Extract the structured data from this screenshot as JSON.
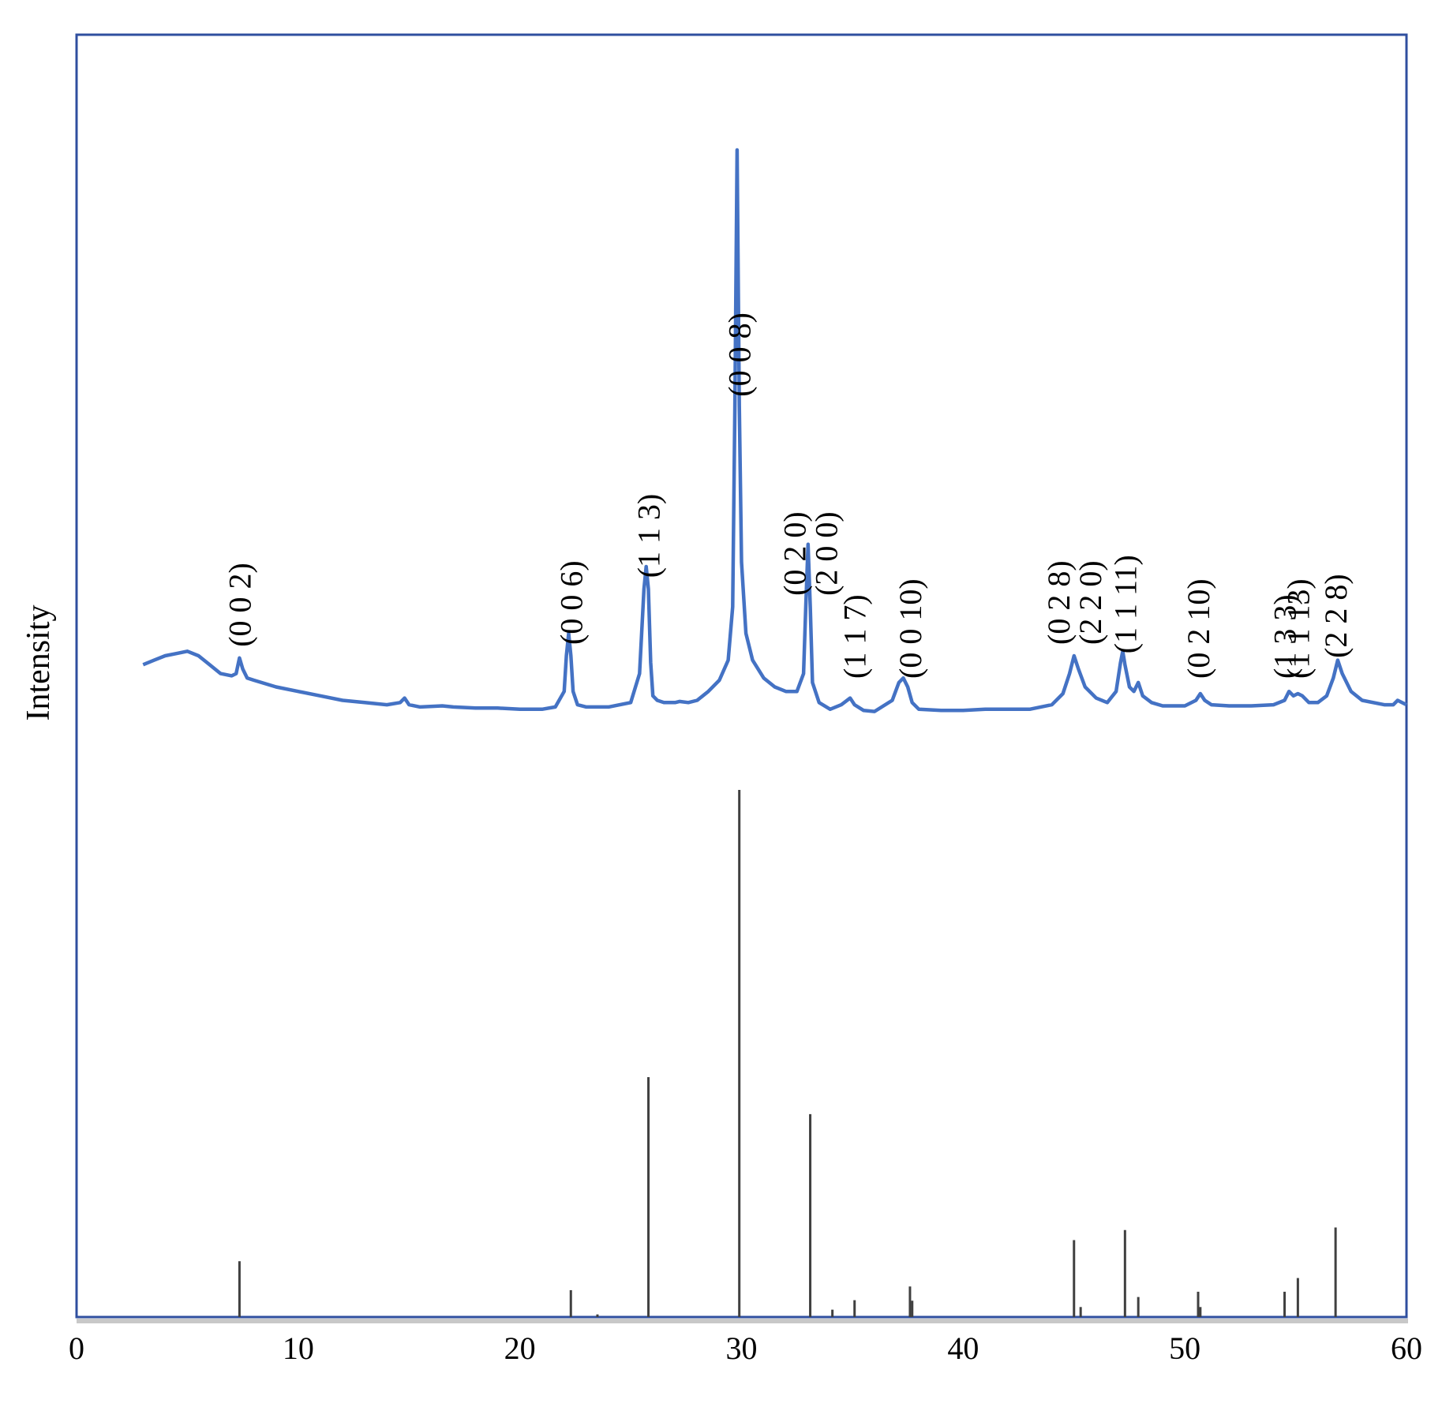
{
  "chart_data": {
    "type": "line",
    "xlabel": "",
    "ylabel": "Intensity",
    "xlim": [
      0,
      60
    ],
    "x_ticks": [
      "0",
      "10",
      "20",
      "30",
      "40",
      "50",
      "60"
    ],
    "grid": false,
    "colors": {
      "pattern": "#4472c4",
      "reference": "#404040",
      "frame": "#2f4f9f"
    },
    "series": [
      {
        "role": "measured_pattern",
        "x": [
          3.0,
          3.5,
          4.0,
          4.5,
          5.0,
          5.5,
          6.0,
          6.5,
          7.0,
          7.2,
          7.35,
          7.5,
          7.7,
          8.0,
          9.0,
          10.0,
          11.0,
          12.0,
          13.0,
          14.0,
          14.6,
          14.8,
          15.0,
          15.5,
          16.5,
          17.0,
          18.0,
          19.0,
          20.0,
          21.0,
          21.6,
          22.0,
          22.1,
          22.2,
          22.3,
          22.4,
          22.6,
          23.0,
          24.0,
          25.0,
          25.4,
          25.6,
          25.7,
          25.8,
          25.9,
          26.0,
          26.2,
          26.5,
          27.0,
          27.2,
          27.6,
          28.0,
          28.5,
          29.0,
          29.4,
          29.6,
          29.7,
          29.8,
          29.9,
          30.0,
          30.2,
          30.5,
          31.0,
          31.5,
          32.0,
          32.5,
          32.8,
          32.9,
          33.0,
          33.1,
          33.2,
          33.5,
          34.0,
          34.5,
          34.9,
          35.1,
          35.5,
          36.0,
          36.8,
          37.1,
          37.3,
          37.5,
          37.7,
          38.0,
          39.0,
          40.0,
          41.0,
          42.0,
          43.0,
          44.0,
          44.5,
          44.8,
          45.0,
          45.2,
          45.5,
          46.0,
          46.5,
          46.9,
          47.1,
          47.2,
          47.3,
          47.5,
          47.7,
          47.9,
          48.1,
          48.5,
          49.0,
          50.0,
          50.5,
          50.7,
          50.9,
          51.2,
          52.0,
          53.0,
          54.0,
          54.5,
          54.7,
          54.9,
          55.1,
          55.3,
          55.6,
          56.0,
          56.4,
          56.7,
          56.9,
          57.1,
          57.5,
          58.0,
          59.0,
          59.4,
          59.6,
          60.0
        ],
        "y": [
          64,
          66,
          68,
          69,
          70,
          68,
          64,
          60,
          59,
          60,
          67,
          62,
          58,
          57,
          54,
          52,
          50,
          48,
          47,
          46,
          47,
          49,
          46,
          45,
          45.5,
          45,
          44.5,
          44.5,
          44,
          44,
          45,
          52,
          68,
          78,
          68,
          52,
          46,
          45,
          45,
          47,
          60,
          98,
          108,
          98,
          65,
          50,
          48,
          47,
          47,
          47.5,
          47,
          48,
          52,
          57,
          66,
          90,
          180,
          295,
          180,
          110,
          78,
          66,
          58,
          54,
          52,
          52,
          60,
          90,
          118,
          90,
          56,
          47,
          44,
          46,
          49,
          46,
          43.5,
          43,
          48,
          56,
          58,
          54,
          47,
          44,
          43.5,
          43.5,
          44,
          44,
          44,
          46,
          51,
          60,
          68,
          62,
          54,
          49,
          47,
          52,
          65,
          70,
          64,
          54,
          52,
          56,
          50,
          47,
          45.5,
          45.5,
          48,
          51,
          48,
          46,
          45.5,
          45.5,
          46,
          48,
          52,
          50,
          51,
          50,
          47,
          47,
          50,
          58,
          66,
          60,
          52,
          48,
          46,
          46,
          48,
          46
        ]
      },
      {
        "role": "reference_lines",
        "x": [
          7.35,
          22.3,
          23.5,
          25.8,
          29.9,
          33.1,
          34.1,
          35.1,
          37.6,
          37.7,
          45.0,
          45.3,
          47.3,
          47.9,
          50.6,
          50.7,
          54.5,
          55.1,
          56.8
        ],
        "y": [
          10.6,
          5.1,
          0.5,
          45.5,
          100,
          38.5,
          1.4,
          3.2,
          5.8,
          3.1,
          14.6,
          1.9,
          16.5,
          3.8,
          4.8,
          1.9,
          4.8,
          7.4,
          17
        ]
      }
    ],
    "peak_labels": [
      {
        "lines": [
          "(0 0 2)"
        ],
        "x": 7.35
      },
      {
        "lines": [
          "(0 0 6)"
        ],
        "x": 22.3
      },
      {
        "lines": [
          "(1 1 3)"
        ],
        "x": 25.8
      },
      {
        "lines": [
          "(0 0 8)"
        ],
        "x": 29.9
      },
      {
        "lines": [
          "(0 2 0)",
          "(2 0 0)"
        ],
        "x": 33.1
      },
      {
        "lines": [
          "(1 1 7)"
        ],
        "x": 35.1
      },
      {
        "lines": [
          "(0 0 10)"
        ],
        "x": 37.6
      },
      {
        "lines": [
          "(0 2 8)",
          "(2 2 0)"
        ],
        "x": 45.0
      },
      {
        "lines": [
          "(1 1 11)"
        ],
        "x": 47.3
      },
      {
        "lines": [
          "(0 2 10)"
        ],
        "x": 50.6
      },
      {
        "lines": [
          "(1 3 3)"
        ],
        "x": 54.5
      },
      {
        "lines": [
          "(1 1 13)"
        ],
        "x": 55.1
      },
      {
        "lines": [
          "(2 2 8)"
        ],
        "x": 56.8
      }
    ]
  }
}
